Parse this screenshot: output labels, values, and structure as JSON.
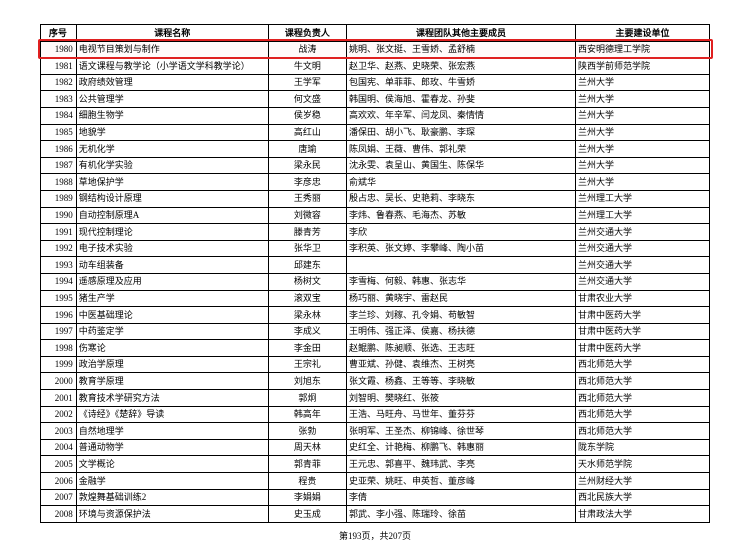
{
  "headers": {
    "seq": "序号",
    "course": "课程名称",
    "leader": "课程负责人",
    "members": "课程团队其他主要成员",
    "org": "主要建设单位"
  },
  "highlight_index": 0,
  "rows": [
    {
      "seq": "1980",
      "course": "电视节目策划与制作",
      "leader": "战涛",
      "members": "姚明、张文挺、王雪娇、孟舒楠",
      "org": "西安明德理工学院"
    },
    {
      "seq": "1981",
      "course": "语文课程与教学论（小学语文学科教学论）",
      "leader": "牛文明",
      "members": "赵卫华、赵燕、史晓荣、张宏燕",
      "org": "陕西学前师范学院"
    },
    {
      "seq": "1982",
      "course": "政府绩效管理",
      "leader": "王学军",
      "members": "包国宪、单菲菲、郎玫、牛雪娇",
      "org": "兰州大学"
    },
    {
      "seq": "1983",
      "course": "公共管理学",
      "leader": "何文盛",
      "members": "韩国明、侯海旭、霍春龙、孙斐",
      "org": "兰州大学"
    },
    {
      "seq": "1984",
      "course": "细胞生物学",
      "leader": "侯岁稳",
      "members": "高欢欢、年辛军、闫龙凤、秦情情",
      "org": "兰州大学"
    },
    {
      "seq": "1985",
      "course": "地貌学",
      "leader": "高红山",
      "members": "潘保田、胡小飞、耿豪鹏、李琛",
      "org": "兰州大学"
    },
    {
      "seq": "1986",
      "course": "无机化学",
      "leader": "唐瑜",
      "members": "陈凤娟、王薇、曹伟、郭礼荣",
      "org": "兰州大学"
    },
    {
      "seq": "1987",
      "course": "有机化学实验",
      "leader": "梁永民",
      "members": "沈永雯、袁呈山、黄国生、陈保华",
      "org": "兰州大学"
    },
    {
      "seq": "1988",
      "course": "草地保护学",
      "leader": "李彦忠",
      "members": "俞斌华",
      "org": "兰州大学"
    },
    {
      "seq": "1989",
      "course": "钢结构设计原理",
      "leader": "王秀丽",
      "members": "殷占忠、吴长、史艳莉、李晓东",
      "org": "兰州理工大学"
    },
    {
      "seq": "1990",
      "course": "自动控制原理A",
      "leader": "刘微容",
      "members": "李炜、鲁春燕、毛海杰、苏敏",
      "org": "兰州理工大学"
    },
    {
      "seq": "1991",
      "course": "现代控制理论",
      "leader": "滕青芳",
      "members": "李欣",
      "org": "兰州交通大学"
    },
    {
      "seq": "1992",
      "course": "电子技术实验",
      "leader": "张华卫",
      "members": "李积英、张文婷、李攀峰、陶小苗",
      "org": "兰州交通大学"
    },
    {
      "seq": "1993",
      "course": "动车组装备",
      "leader": "邱建东",
      "members": "",
      "org": "兰州交通大学"
    },
    {
      "seq": "1994",
      "course": "遥感原理及应用",
      "leader": "杨树文",
      "members": "李雪梅、何毅、韩惠、张志华",
      "org": "兰州交通大学"
    },
    {
      "seq": "1995",
      "course": "猪生产学",
      "leader": "滚双宝",
      "members": "杨巧丽、黄晓宇、雷赵民",
      "org": "甘肃农业大学"
    },
    {
      "seq": "1996",
      "course": "中医基础理论",
      "leader": "梁永林",
      "members": "李兰珍、刘稼、孔令娟、苟敏智",
      "org": "甘肃中医药大学"
    },
    {
      "seq": "1997",
      "course": "中药鉴定学",
      "leader": "李成义",
      "members": "王明伟、强正泽、侯嘉、杨扶德",
      "org": "甘肃中医药大学"
    },
    {
      "seq": "1998",
      "course": "伤寒论",
      "leader": "李金田",
      "members": "赵鲲鹏、陈昶顺、张选、王志旺",
      "org": "甘肃中医药大学"
    },
    {
      "seq": "1999",
      "course": "政治学原理",
      "leader": "王宗礼",
      "members": "曹亚斌、孙健、袁维杰、王树亮",
      "org": "西北师范大学"
    },
    {
      "seq": "2000",
      "course": "教育学原理",
      "leader": "刘旭东",
      "members": "张文霞、杨鑫、王等等、李晓敏",
      "org": "西北师范大学"
    },
    {
      "seq": "2001",
      "course": "教育技术学研究方法",
      "leader": "郭炯",
      "members": "刘智明、樊晓红、张筱",
      "org": "西北师范大学"
    },
    {
      "seq": "2002",
      "course": "《诗经》《楚辞》导读",
      "leader": "韩高年",
      "members": "王浩、马旺舟、马世年、董芬芬",
      "org": "西北师范大学"
    },
    {
      "seq": "2003",
      "course": "自然地理学",
      "leader": "张勃",
      "members": "张明军、王圣杰、柳锦峰、徐世琴",
      "org": "西北师范大学"
    },
    {
      "seq": "2004",
      "course": "普通动物学",
      "leader": "周天林",
      "members": "史红全、计艳梅、柳鹏飞、韩惠丽",
      "org": "陇东学院"
    },
    {
      "seq": "2005",
      "course": "文学概论",
      "leader": "郭青菲",
      "members": "王元忠、郭喜平、魏玮武、李亮",
      "org": "天水师范学院"
    },
    {
      "seq": "2006",
      "course": "金融学",
      "leader": "程贵",
      "members": "史亚荣、姚旺、申英哲、董彦峰",
      "org": "兰州财经大学"
    },
    {
      "seq": "2007",
      "course": "敦煌舞基础训练2",
      "leader": "李娟娟",
      "members": "李倩",
      "org": "西北民族大学"
    },
    {
      "seq": "2008",
      "course": "环境与资源保护法",
      "leader": "史玉成",
      "members": "郭武、李小强、陈瑞玲、徐苗",
      "org": "甘肃政法大学"
    }
  ],
  "footer": "第193页，共207页"
}
